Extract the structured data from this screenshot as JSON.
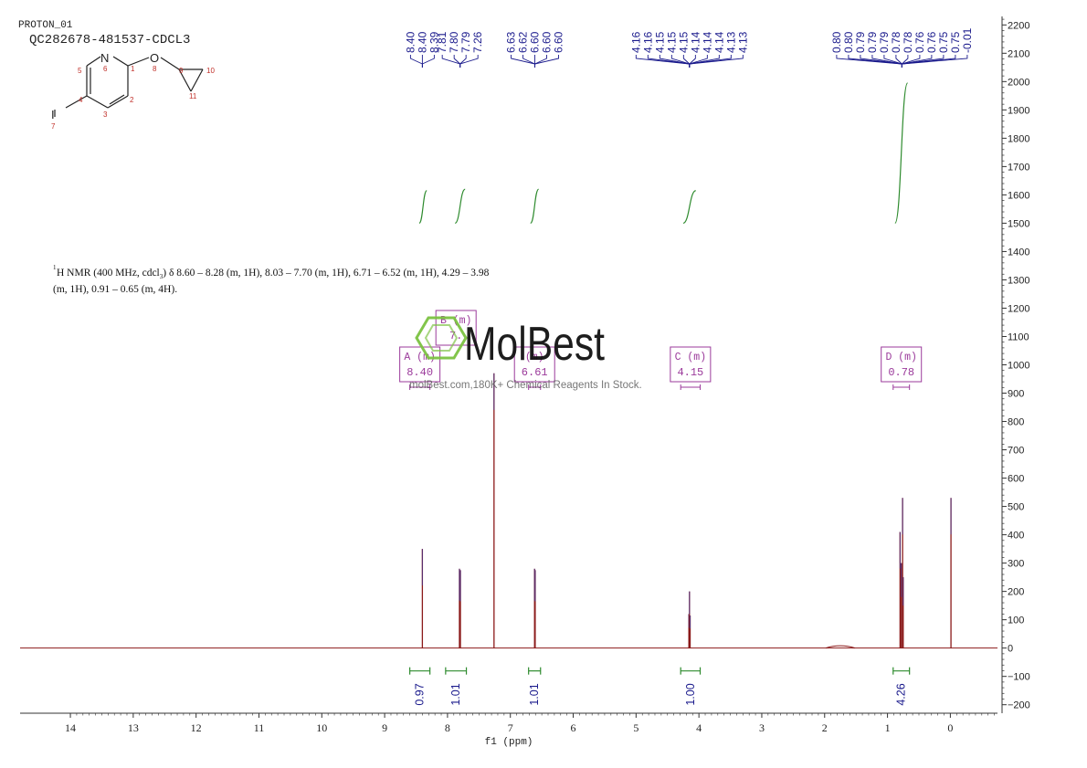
{
  "header": {
    "experiment": "PROTON_01",
    "sample": "QC282678-481537-CDCL3"
  },
  "structure": {
    "atoms": [
      {
        "symbol": "N",
        "number": "6"
      },
      {
        "symbol": "O",
        "number": "8"
      },
      {
        "symbol": "I",
        "number": "7"
      }
    ],
    "atom_numbers": [
      "1",
      "2",
      "3",
      "4",
      "5",
      "9",
      "10",
      "11"
    ]
  },
  "description": {
    "sup": "1",
    "line1": "H NMR (400 MHz, cdcl",
    "sub": "3",
    "line1_rest": ") δ 8.60 – 8.28 (m, 1H), 8.03 – 7.70 (m, 1H), 6.71 – 6.52 (m, 1H), 4.29 – 3.98",
    "line2": "(m, 1H), 0.91 – 0.65 (m, 4H)."
  },
  "watermark": {
    "brand": "MolBest",
    "tagline": "molBest.com,180K+ Chemical Reagents In Stock."
  },
  "colors": {
    "spectrum": "#8b1a1a",
    "peak_labels": "#1a1a8c",
    "integral": "#2e8b2e",
    "multiplet": "#9b3a9b",
    "axis": "#333333",
    "watermark_green": "#7cc242"
  },
  "chart_data": {
    "type": "line",
    "xlabel": "f1 (ppm)",
    "xlim": [
      14.8,
      -0.75
    ],
    "x_ticks": [
      14,
      13,
      12,
      11,
      10,
      9,
      8,
      7,
      6,
      5,
      4,
      3,
      2,
      1,
      0
    ],
    "ylim": [
      -230,
      2230
    ],
    "y_ticks": [
      2200,
      2100,
      2000,
      1900,
      1800,
      1700,
      1600,
      1500,
      1400,
      1300,
      1200,
      1100,
      1000,
      900,
      800,
      700,
      600,
      500,
      400,
      300,
      200,
      100,
      0,
      -100,
      -200
    ],
    "peaks": [
      {
        "ppm": 8.4,
        "height": 350
      },
      {
        "ppm": 7.81,
        "height": 280
      },
      {
        "ppm": 7.795,
        "height": 275
      },
      {
        "ppm": 7.26,
        "height": 970
      },
      {
        "ppm": 6.615,
        "height": 280
      },
      {
        "ppm": 6.605,
        "height": 275
      },
      {
        "ppm": 4.16,
        "height": 120
      },
      {
        "ppm": 4.15,
        "height": 200
      },
      {
        "ppm": 4.14,
        "height": 115
      },
      {
        "ppm": 0.8,
        "height": 410
      },
      {
        "ppm": 0.78,
        "height": 300
      },
      {
        "ppm": 0.76,
        "height": 530
      },
      {
        "ppm": 0.75,
        "height": 250
      },
      {
        "ppm": -0.01,
        "height": 530
      }
    ],
    "broad_bumps": [
      {
        "ppm": 1.75,
        "height": 8
      }
    ],
    "peak_label_groups": [
      {
        "center": 8.4,
        "labels": [
          "8.40",
          "8.40",
          "8.39"
        ]
      },
      {
        "center": 7.8,
        "labels": [
          "7.81",
          "7.80",
          "7.79",
          "7.26"
        ]
      },
      {
        "center": 6.61,
        "labels": [
          "6.63",
          "6.62",
          "6.60",
          "6.60",
          "6.60"
        ]
      },
      {
        "center": 4.15,
        "labels": [
          "4.16",
          "4.16",
          "4.15",
          "4.15",
          "4.15",
          "4.14",
          "4.14",
          "4.14",
          "4.13",
          "4.13"
        ]
      },
      {
        "center": 0.77,
        "labels": [
          "0.80",
          "0.80",
          "0.79",
          "0.79",
          "0.79",
          "0.78",
          "0.78",
          "0.76",
          "0.76",
          "0.75",
          "0.75",
          "-0.01"
        ]
      }
    ],
    "integral_curves": [
      {
        "from": 8.45,
        "to": 8.33,
        "y0": 1500,
        "y1": 1615
      },
      {
        "from": 7.88,
        "to": 7.72,
        "y0": 1500,
        "y1": 1620
      },
      {
        "from": 6.68,
        "to": 6.55,
        "y0": 1500,
        "y1": 1620
      },
      {
        "from": 4.25,
        "to": 4.05,
        "y0": 1500,
        "y1": 1615
      },
      {
        "from": 0.88,
        "to": 0.68,
        "y0": 1500,
        "y1": 1995
      }
    ],
    "integrals": [
      {
        "from": 8.6,
        "to": 8.28,
        "value": "0.97"
      },
      {
        "from": 8.03,
        "to": 7.7,
        "value": "1.01"
      },
      {
        "from": 6.71,
        "to": 6.52,
        "value": "1.01"
      },
      {
        "from": 4.29,
        "to": 3.98,
        "value": "1.00"
      },
      {
        "from": 0.91,
        "to": 0.65,
        "value": "4.26"
      }
    ],
    "multiplets": [
      {
        "letter": "A",
        "type": "(m)",
        "shift": "8.40",
        "from": 8.6,
        "to": 8.28
      },
      {
        "letter": "B",
        "type": "(m)",
        "shift": "7.",
        "from": 8.03,
        "to": 7.7
      },
      {
        "letter": "",
        "type": "(m)",
        "shift": "6.61",
        "from": 6.71,
        "to": 6.52
      },
      {
        "letter": "C",
        "type": "(m)",
        "shift": "4.15",
        "from": 4.29,
        "to": 3.98
      },
      {
        "letter": "D",
        "type": "(m)",
        "shift": "0.78",
        "from": 0.91,
        "to": 0.65
      }
    ]
  }
}
